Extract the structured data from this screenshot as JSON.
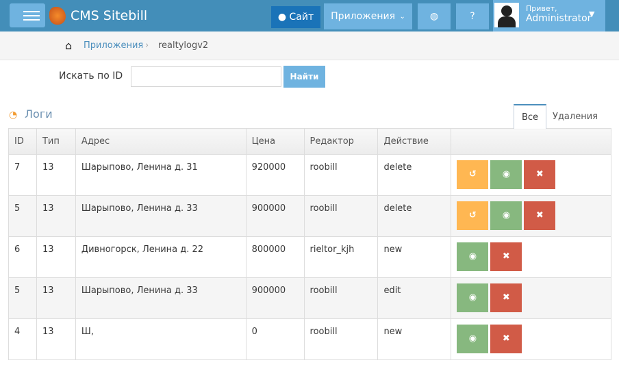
{
  "nav": {
    "brand": "CMS Sitebill",
    "site": "Сайт",
    "apps": "Приложения",
    "hello": "Привет,",
    "user": "Administrator"
  },
  "breadcrumb": {
    "items": [
      "Приложения",
      "realtylogv2"
    ]
  },
  "search": {
    "label": "Искать по ID",
    "value": "",
    "button": "Найти"
  },
  "section": {
    "title": "Логи"
  },
  "tabs": [
    "Все",
    "Удаления"
  ],
  "table": {
    "headers": [
      "ID",
      "Тип",
      "Адрес",
      "Цена",
      "Редактор",
      "Действие",
      ""
    ],
    "rows": [
      {
        "id": "7",
        "type": "13",
        "address": "Шарыпово, Ленина д. 31",
        "price": "920000",
        "editor": "roobill",
        "action": "delete",
        "restore": true
      },
      {
        "id": "5",
        "type": "13",
        "address": "Шарыпово, Ленина д. 33",
        "price": "900000",
        "editor": "roobill",
        "action": "delete",
        "restore": true
      },
      {
        "id": "6",
        "type": "13",
        "address": "Дивногорск, Ленина д. 22",
        "price": "800000",
        "editor": "rieltor_kjh",
        "action": "new",
        "restore": false
      },
      {
        "id": "5",
        "type": "13",
        "address": "Шарыпово, Ленина д. 33",
        "price": "900000",
        "editor": "roobill",
        "action": "edit",
        "restore": false
      },
      {
        "id": "4",
        "type": "13",
        "address": "Ш,",
        "price": "0",
        "editor": "roobill",
        "action": "new",
        "restore": false
      }
    ]
  }
}
